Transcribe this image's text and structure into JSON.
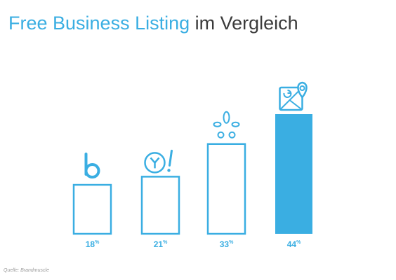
{
  "title": {
    "highlight": "Free Business Listing",
    "rest": " im Vergleich"
  },
  "source": "Quelle: Brandmuscle",
  "colors": {
    "accent": "#3aaee2",
    "title_rest": "#3b3b3b",
    "source": "#9a9a9a"
  },
  "chart_data": {
    "type": "bar",
    "categories": [
      "Bing",
      "Yahoo",
      "Yelp",
      "Google"
    ],
    "icons": [
      "bing-icon",
      "yahoo-icon",
      "yelp-icon",
      "google-maps-icon"
    ],
    "values": [
      18,
      21,
      33,
      44
    ],
    "labels": [
      "18",
      "21",
      "33",
      "44"
    ],
    "unit": "%",
    "filled": [
      false,
      false,
      false,
      true
    ],
    "title": "Free Business Listing im Vergleich",
    "ylim": [
      0,
      44
    ],
    "grid": false,
    "legend": "none"
  }
}
